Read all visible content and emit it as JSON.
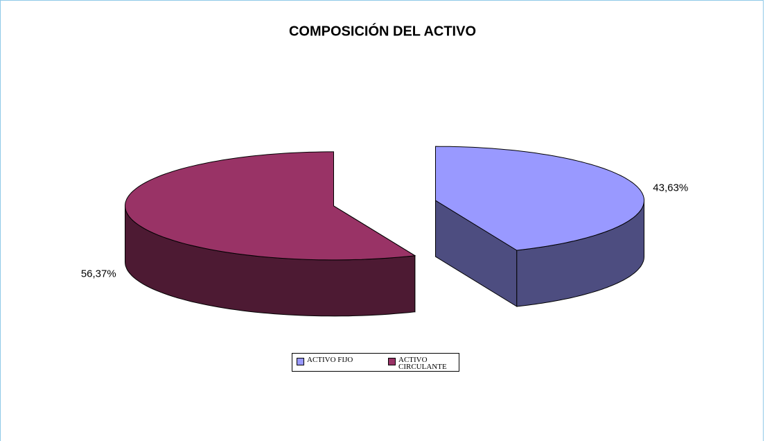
{
  "chart_data": {
    "type": "pie",
    "title": "COMPOSICIÓN DEL ACTIVO",
    "categories": [
      "ACTIVO FIJO",
      "ACTIVO CIRCULANTE"
    ],
    "values": [
      43.63,
      56.37
    ],
    "value_labels": [
      "43,63%",
      "56,37%"
    ],
    "colors": [
      "#9999FF",
      "#993366"
    ],
    "legend": "bottom"
  }
}
